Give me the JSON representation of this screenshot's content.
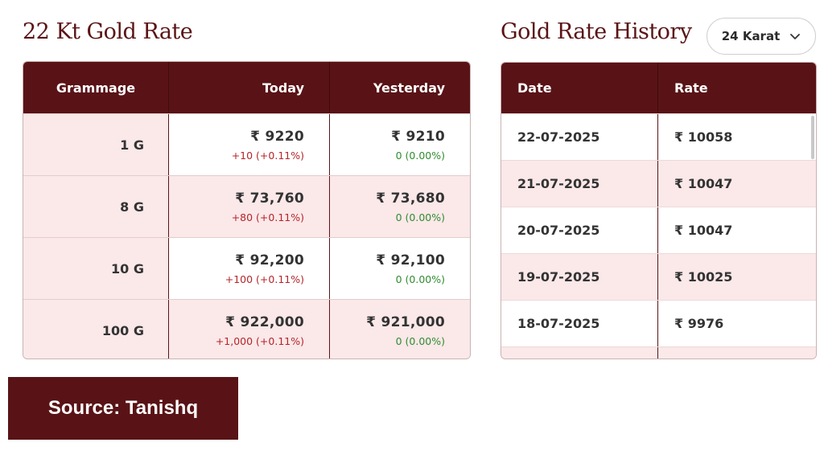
{
  "rate": {
    "title": "22 Kt Gold Rate",
    "headers": {
      "grammage": "Grammage",
      "today": "Today",
      "yesterday": "Yesterday"
    },
    "rows": [
      {
        "grammage": "1 G",
        "today": "₹ 9220",
        "today_change": "+10 (+0.11%)",
        "yesterday": "₹ 9210",
        "yesterday_change": "0 (0.00%)"
      },
      {
        "grammage": "8 G",
        "today": "₹ 73,760",
        "today_change": "+80 (+0.11%)",
        "yesterday": "₹ 73,680",
        "yesterday_change": "0 (0.00%)"
      },
      {
        "grammage": "10 G",
        "today": "₹ 92,200",
        "today_change": "+100 (+0.11%)",
        "yesterday": "₹ 92,100",
        "yesterday_change": "0 (0.00%)"
      },
      {
        "grammage": "100 G",
        "today": "₹ 922,000",
        "today_change": "+1,000 (+0.11%)",
        "yesterday": "₹ 921,000",
        "yesterday_change": "0 (0.00%)"
      }
    ]
  },
  "history": {
    "title": "Gold Rate History",
    "karat_selected": "24 Karat",
    "headers": {
      "date": "Date",
      "rate": "Rate"
    },
    "rows": [
      {
        "date": "22-07-2025",
        "rate": "₹ 10058"
      },
      {
        "date": "21-07-2025",
        "rate": "₹ 10047"
      },
      {
        "date": "20-07-2025",
        "rate": "₹ 10047"
      },
      {
        "date": "19-07-2025",
        "rate": "₹ 10025"
      },
      {
        "date": "18-07-2025",
        "rate": "₹ 9976"
      }
    ]
  },
  "source": "Source: Tanishq",
  "colors": {
    "brand": "#591316",
    "row_tint": "#fbe8e9",
    "up": "#b4252a",
    "flat": "#2f8c2f"
  },
  "icons": {
    "dropdown": "chevron-down-icon"
  }
}
